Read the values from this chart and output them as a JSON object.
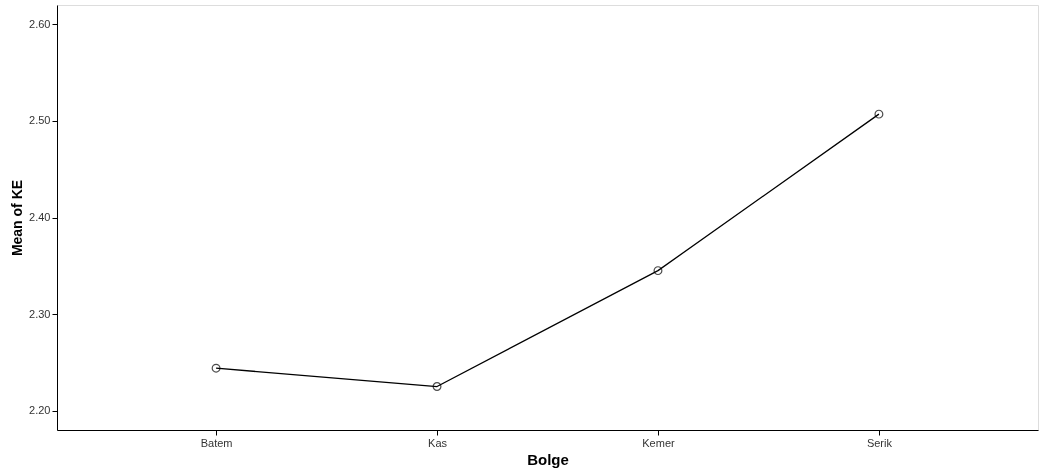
{
  "chart_data": {
    "type": "line",
    "xlabel": "Bolge",
    "ylabel": "Mean of KE",
    "categories": [
      "Batem",
      "Kas",
      "Kemer",
      "Serik"
    ],
    "series": [
      {
        "color": "#000000",
        "values": [
          2.244,
          2.225,
          2.345,
          2.507
        ]
      }
    ],
    "ylim": [
      2.18,
      2.62
    ],
    "yticks": [
      {
        "value": 2.2,
        "label": "2.20"
      },
      {
        "value": 2.3,
        "label": "2.30"
      },
      {
        "value": 2.4,
        "label": "2.40"
      },
      {
        "value": 2.5,
        "label": "2.50"
      },
      {
        "value": 2.6,
        "label": "2.60"
      }
    ],
    "marker": "circle",
    "grid": false,
    "legend": false
  }
}
